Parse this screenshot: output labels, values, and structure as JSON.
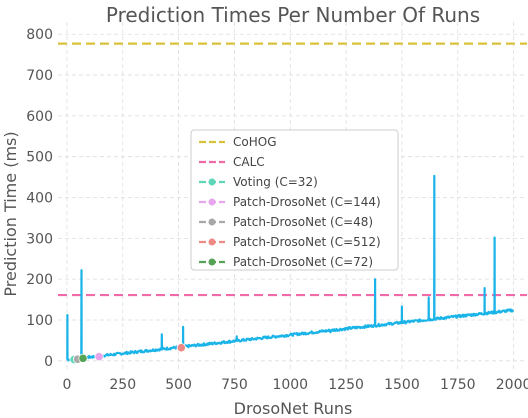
{
  "chart_data": {
    "type": "line",
    "title": "Prediction Times Per Number Of Runs",
    "xlabel": "DrosoNet Runs",
    "ylabel": "Prediction Time (ms)",
    "xlim": [
      -40,
      2060
    ],
    "ylim": [
      -25,
      830
    ],
    "xticks": [
      0,
      250,
      500,
      750,
      1000,
      1250,
      1500,
      1750,
      2000
    ],
    "yticks": [
      0,
      100,
      200,
      300,
      400,
      500,
      600,
      700,
      800
    ],
    "grid": true,
    "legend_position": "center",
    "colors": {
      "drosonet": "#1ab4e8",
      "cohog": "#d8c23a",
      "calc": "#f06aa8",
      "voting": "#5fd6b8",
      "patch144": "#e7a6ec",
      "patch48": "#a8a8a8",
      "patch512": "#ee8a86",
      "patch72": "#56a356"
    },
    "drosonet_line": {
      "x_start": 1,
      "x_end": 2000,
      "y_start": 3,
      "y_end": 124,
      "spikes": [
        {
          "x": 2,
          "y": 112
        },
        {
          "x": 65,
          "y": 222
        },
        {
          "x": 425,
          "y": 65
        },
        {
          "x": 520,
          "y": 83
        },
        {
          "x": 760,
          "y": 60
        },
        {
          "x": 1180,
          "y": 70
        },
        {
          "x": 1380,
          "y": 200
        },
        {
          "x": 1500,
          "y": 133
        },
        {
          "x": 1620,
          "y": 155
        },
        {
          "x": 1645,
          "y": 453
        },
        {
          "x": 1870,
          "y": 178
        },
        {
          "x": 1915,
          "y": 302
        }
      ]
    },
    "series": [
      {
        "name": "CoHOG",
        "type": "hline",
        "y": 777
      },
      {
        "name": "CALC",
        "type": "hline",
        "y": 161
      },
      {
        "name": "Voting (C=32)",
        "type": "point",
        "x": 32,
        "y": 3
      },
      {
        "name": "Patch-DrosoNet (C=144)",
        "type": "point",
        "x": 144,
        "y": 10
      },
      {
        "name": "Patch-DrosoNet (C=48)",
        "type": "point",
        "x": 48,
        "y": 4
      },
      {
        "name": "Patch-DrosoNet (C=512)",
        "type": "point",
        "x": 512,
        "y": 32
      },
      {
        "name": "Patch-DrosoNet (C=72)",
        "type": "point",
        "x": 72,
        "y": 6
      }
    ]
  }
}
